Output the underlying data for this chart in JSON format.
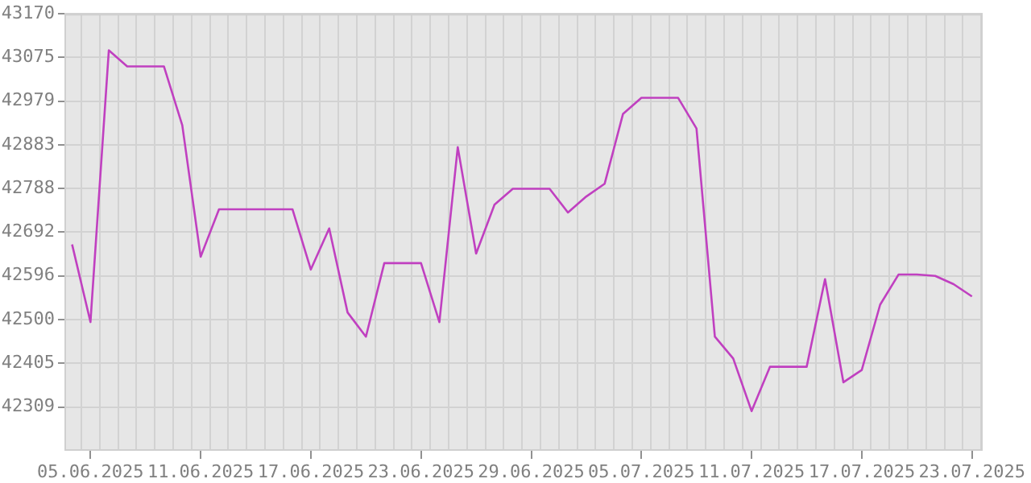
{
  "chart_data": {
    "type": "line",
    "x": [
      "2025-06-04",
      "2025-06-05",
      "2025-06-06",
      "2025-06-07",
      "2025-06-08",
      "2025-06-09",
      "2025-06-10",
      "2025-06-11",
      "2025-06-12",
      "2025-06-13",
      "2025-06-14",
      "2025-06-15",
      "2025-06-16",
      "2025-06-17",
      "2025-06-18",
      "2025-06-19",
      "2025-06-20",
      "2025-06-21",
      "2025-06-22",
      "2025-06-23",
      "2025-06-24",
      "2025-06-25",
      "2025-06-26",
      "2025-06-27",
      "2025-06-28",
      "2025-06-29",
      "2025-06-30",
      "2025-07-01",
      "2025-07-02",
      "2025-07-03",
      "2025-07-04",
      "2025-07-05",
      "2025-07-06",
      "2025-07-07",
      "2025-07-08",
      "2025-07-09",
      "2025-07-10",
      "2025-07-11",
      "2025-07-12",
      "2025-07-13",
      "2025-07-14",
      "2025-07-15",
      "2025-07-16",
      "2025-07-17",
      "2025-07-18",
      "2025-07-19",
      "2025-07-20",
      "2025-07-21",
      "2025-07-22",
      "2025-07-23"
    ],
    "series": [
      {
        "color": "#c040c0",
        "values": [
          42665,
          42495,
          43090,
          43055,
          43055,
          43055,
          42926,
          42638,
          42742,
          42742,
          42742,
          42742,
          42742,
          42610,
          42700,
          42516,
          42463,
          42624,
          42624,
          42624,
          42495,
          42878,
          42645,
          42752,
          42787,
          42787,
          42787,
          42735,
          42770,
          42798,
          42951,
          42986,
          42986,
          42986,
          42919,
          42463,
          42415,
          42300,
          42397,
          42397,
          42397,
          42589,
          42363,
          42390,
          42533,
          42599,
          42599,
          42596,
          42578,
          42551
        ]
      }
    ],
    "xlim": [
      "2025-06-03T14:00",
      "2025-07-23T14:00"
    ],
    "xticks": [
      {
        "value": "2025-06-05",
        "label": "05.06.2025"
      },
      {
        "value": "2025-06-11",
        "label": "11.06.2025"
      },
      {
        "value": "2025-06-17",
        "label": "17.06.2025"
      },
      {
        "value": "2025-06-23",
        "label": "23.06.2025"
      },
      {
        "value": "2025-06-29",
        "label": "29.06.2025"
      },
      {
        "value": "2025-07-05",
        "label": "05.07.2025"
      },
      {
        "value": "2025-07-11",
        "label": "11.07.2025"
      },
      {
        "value": "2025-07-17",
        "label": "17.07.2025"
      },
      {
        "value": "2025-07-23",
        "label": "23.07.2025"
      },
      {
        "value": "2025-06-04T12:00",
        "label": null
      },
      {
        "value": "2025-06-05T12:00",
        "label": null
      },
      {
        "value": "2025-06-06T12:00",
        "label": null
      },
      {
        "value": "2025-06-07T12:00",
        "label": null
      },
      {
        "value": "2025-06-08T12:00",
        "label": null
      },
      {
        "value": "2025-06-09T12:00",
        "label": null
      },
      {
        "value": "2025-06-10T12:00",
        "label": null
      },
      {
        "value": "2025-06-11T12:00",
        "label": null
      },
      {
        "value": "2025-06-12T12:00",
        "label": null
      },
      {
        "value": "2025-06-13T12:00",
        "label": null
      },
      {
        "value": "2025-06-14T12:00",
        "label": null
      },
      {
        "value": "2025-06-15T12:00",
        "label": null
      },
      {
        "value": "2025-06-16T12:00",
        "label": null
      },
      {
        "value": "2025-06-17T12:00",
        "label": null
      },
      {
        "value": "2025-06-18T12:00",
        "label": null
      },
      {
        "value": "2025-06-19T12:00",
        "label": null
      },
      {
        "value": "2025-06-20T12:00",
        "label": null
      },
      {
        "value": "2025-06-21T12:00",
        "label": null
      },
      {
        "value": "2025-06-22T12:00",
        "label": null
      },
      {
        "value": "2025-06-23T12:00",
        "label": null
      },
      {
        "value": "2025-06-24T12:00",
        "label": null
      },
      {
        "value": "2025-06-25T12:00",
        "label": null
      },
      {
        "value": "2025-06-26T12:00",
        "label": null
      },
      {
        "value": "2025-06-27T12:00",
        "label": null
      },
      {
        "value": "2025-06-28T12:00",
        "label": null
      },
      {
        "value": "2025-06-29T12:00",
        "label": null
      },
      {
        "value": "2025-06-30T12:00",
        "label": null
      },
      {
        "value": "2025-07-01T12:00",
        "label": null
      },
      {
        "value": "2025-07-02T12:00",
        "label": null
      },
      {
        "value": "2025-07-03T12:00",
        "label": null
      },
      {
        "value": "2025-07-04T12:00",
        "label": null
      },
      {
        "value": "2025-07-05T12:00",
        "label": null
      },
      {
        "value": "2025-07-06T12:00",
        "label": null
      },
      {
        "value": "2025-07-07T12:00",
        "label": null
      },
      {
        "value": "2025-07-08T12:00",
        "label": null
      },
      {
        "value": "2025-07-09T12:00",
        "label": null
      },
      {
        "value": "2025-07-10T12:00",
        "label": null
      },
      {
        "value": "2025-07-11T12:00",
        "label": null
      },
      {
        "value": "2025-07-12T12:00",
        "label": null
      },
      {
        "value": "2025-07-13T12:00",
        "label": null
      },
      {
        "value": "2025-07-14T12:00",
        "label": null
      },
      {
        "value": "2025-07-15T12:00",
        "label": null
      },
      {
        "value": "2025-07-16T12:00",
        "label": null
      },
      {
        "value": "2025-07-17T12:00",
        "label": null
      },
      {
        "value": "2025-07-18T12:00",
        "label": null
      },
      {
        "value": "2025-07-19T12:00",
        "label": null
      },
      {
        "value": "2025-07-20T12:00",
        "label": null
      },
      {
        "value": "2025-07-21T12:00",
        "label": null
      },
      {
        "value": "2025-07-22T12:00",
        "label": null
      },
      {
        "value": "2025-07-23T12:00",
        "label": null
      }
    ],
    "ylim": [
      42213,
      43170
    ],
    "yticks": [
      42309,
      42405,
      42500,
      42596,
      42692,
      42788,
      42883,
      42979,
      43075,
      43170
    ],
    "grid": true,
    "legend": false,
    "marker": "none",
    "line_style": "solid"
  }
}
